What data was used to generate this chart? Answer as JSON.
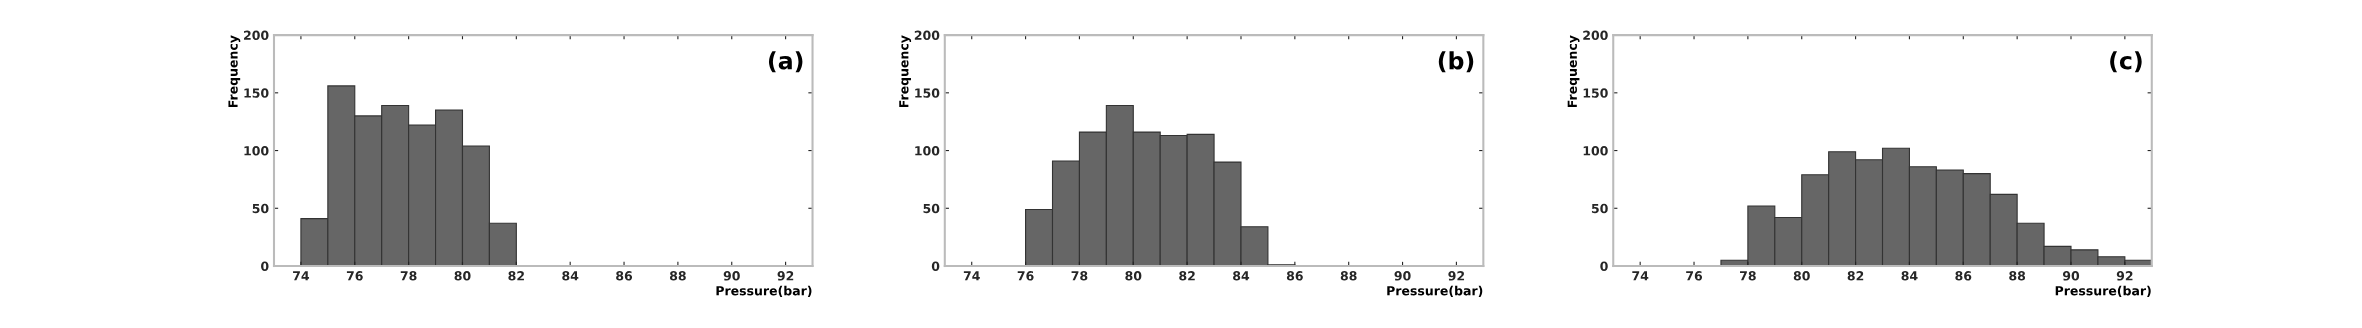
{
  "chart_data": [
    {
      "type": "histogram",
      "xlabel": "Pressure(bar)",
      "ylabel": "Frequency",
      "annotations": [
        "(a)"
      ],
      "color": "#666666",
      "bins": [
        74,
        75,
        76,
        77,
        78,
        79,
        80,
        81,
        82
      ],
      "values": [
        41,
        156,
        130,
        139,
        122,
        135,
        104,
        37
      ],
      "xlim": [
        73,
        93
      ],
      "ylim": [
        0,
        200
      ],
      "xticks": [
        74,
        76,
        78,
        80,
        82,
        84,
        86,
        88,
        90,
        92
      ],
      "yticks": [
        0,
        50,
        100,
        150,
        200
      ],
      "grid": false,
      "legend": false
    },
    {
      "type": "histogram",
      "xlabel": "Pressure(bar)",
      "ylabel": "Frequency",
      "annotations": [
        "(b)"
      ],
      "color": "#666666",
      "bins": [
        76,
        77,
        78,
        79,
        80,
        81,
        82,
        83,
        84,
        85,
        86
      ],
      "values": [
        49,
        91,
        116,
        139,
        116,
        113,
        114,
        90,
        34,
        1
      ],
      "xlim": [
        73,
        93
      ],
      "ylim": [
        0,
        200
      ],
      "xticks": [
        74,
        76,
        78,
        80,
        82,
        84,
        86,
        88,
        90,
        92
      ],
      "yticks": [
        0,
        50,
        100,
        150,
        200
      ],
      "grid": false,
      "legend": false
    },
    {
      "type": "histogram",
      "xlabel": "Pressure(bar)",
      "ylabel": "Frequency",
      "annotations": [
        "(c)"
      ],
      "color": "#666666",
      "bins": [
        77,
        78,
        79,
        80,
        81,
        82,
        83,
        84,
        85,
        86,
        87,
        88,
        89,
        90,
        91,
        92,
        93
      ],
      "values": [
        5,
        52,
        42,
        79,
        99,
        92,
        102,
        86,
        83,
        80,
        62,
        37,
        17,
        14,
        8,
        5
      ],
      "xlim": [
        73,
        93
      ],
      "ylim": [
        0,
        200
      ],
      "xticks": [
        74,
        76,
        78,
        80,
        82,
        84,
        86,
        88,
        90,
        92
      ],
      "yticks": [
        0,
        50,
        100,
        150,
        200
      ],
      "grid": false,
      "legend": false
    }
  ]
}
